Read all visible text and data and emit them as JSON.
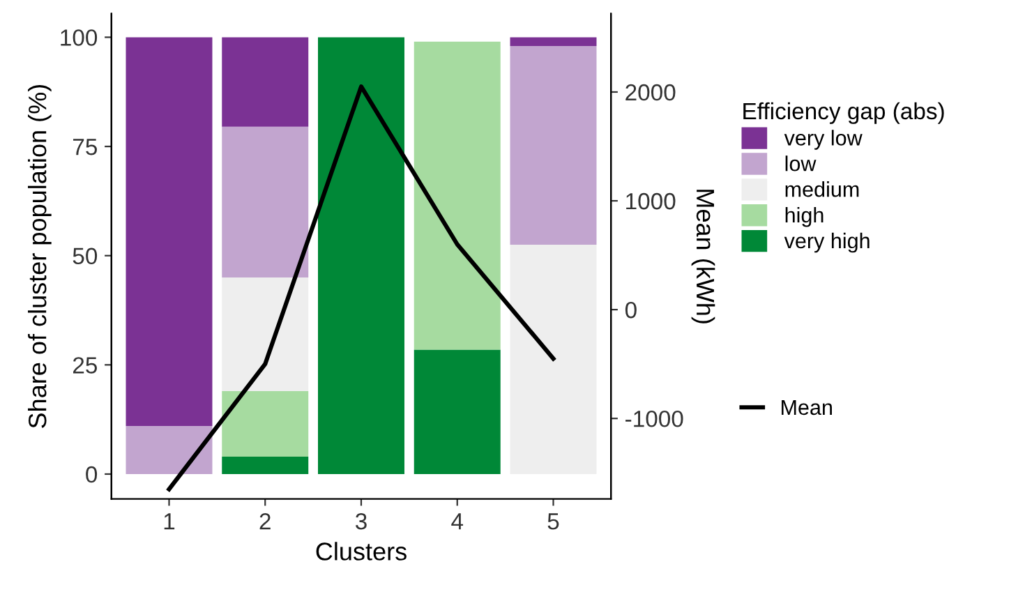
{
  "chart_data": {
    "type": "bar",
    "stacked": true,
    "categories": [
      "1",
      "2",
      "3",
      "4",
      "5"
    ],
    "xlabel": "Clusters",
    "ylabel": "Share of cluster population (%)",
    "y2label": "Mean (kWh)",
    "legend_title": "Efficiency gap (abs)",
    "series": [
      {
        "name": "very high",
        "color": "#008837",
        "values": [
          0,
          4,
          100,
          28.5,
          0
        ]
      },
      {
        "name": "high",
        "color": "#a6dba0",
        "values": [
          0,
          15,
          0,
          70.5,
          0
        ]
      },
      {
        "name": "medium",
        "color": "#eeeeee",
        "values": [
          0,
          26,
          0,
          null,
          52.5
        ]
      },
      {
        "name": "low",
        "color": "#c2a5cf",
        "values": [
          11,
          34.5,
          0,
          0,
          45.5
        ]
      },
      {
        "name": "very low",
        "color": "#7b3294",
        "values": [
          89,
          20.5,
          0,
          0,
          2
        ]
      },
      {
        "name": "Mean",
        "type": "line",
        "axis": "y2",
        "color": "#000000",
        "values": [
          -1650,
          -500,
          2050,
          600,
          -450
        ]
      }
    ],
    "ylim": [
      -5.7,
      105.4
    ],
    "yticks": [
      0,
      25,
      50,
      75,
      100
    ],
    "y2lim": [
      -1740,
      2720
    ],
    "y2ticks": [
      -1000,
      0,
      1000,
      2000
    ],
    "legend": "right",
    "grid": false
  }
}
